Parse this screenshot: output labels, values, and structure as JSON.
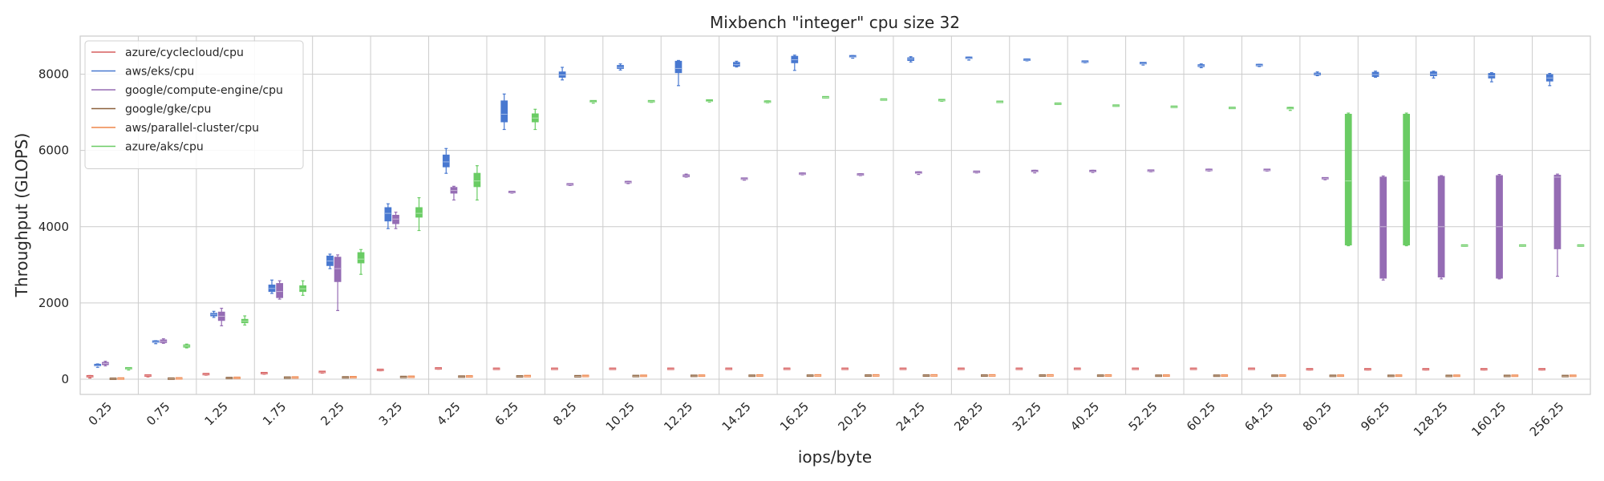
{
  "chart_data": {
    "type": "box",
    "title": "Mixbench \"integer\" cpu size 32",
    "xlabel": "iops/byte",
    "ylabel": "Throughput (GLOPS)",
    "ylim": [
      -400,
      9000
    ],
    "yticks": [
      0,
      2000,
      4000,
      6000,
      8000
    ],
    "grid": true,
    "legend_position": "top-left",
    "categories": [
      "0.25",
      "0.75",
      "1.25",
      "1.75",
      "2.25",
      "3.25",
      "4.25",
      "6.25",
      "8.25",
      "10.25",
      "12.25",
      "14.25",
      "16.25",
      "20.25",
      "24.25",
      "28.25",
      "32.25",
      "40.25",
      "52.25",
      "60.25",
      "64.25",
      "80.25",
      "96.25",
      "128.25",
      "160.25",
      "256.25"
    ],
    "series": [
      {
        "name": "azure/cyclecloud/cpu",
        "color": "#d65f5f",
        "boxes": [
          [
            30,
            55,
            65,
            75,
            95
          ],
          [
            60,
            80,
            90,
            95,
            110
          ],
          [
            105,
            118,
            125,
            132,
            145
          ],
          [
            130,
            142,
            150,
            158,
            170
          ],
          [
            160,
            175,
            182,
            190,
            200
          ],
          [
            220,
            230,
            238,
            243,
            255
          ],
          [
            260,
            270,
            275,
            282,
            292
          ],
          [
            255,
            262,
            268,
            272,
            282
          ],
          [
            255,
            262,
            268,
            272,
            282
          ],
          [
            258,
            263,
            268,
            272,
            280
          ],
          [
            258,
            263,
            268,
            272,
            280
          ],
          [
            258,
            263,
            268,
            272,
            280
          ],
          [
            258,
            263,
            268,
            272,
            280
          ],
          [
            258,
            263,
            268,
            272,
            280
          ],
          [
            258,
            263,
            268,
            272,
            280
          ],
          [
            258,
            263,
            268,
            272,
            280
          ],
          [
            258,
            263,
            268,
            272,
            280
          ],
          [
            258,
            263,
            268,
            272,
            280
          ],
          [
            258,
            263,
            268,
            272,
            280
          ],
          [
            258,
            263,
            268,
            272,
            280
          ],
          [
            258,
            263,
            268,
            272,
            280
          ],
          [
            240,
            250,
            255,
            260,
            268
          ],
          [
            240,
            250,
            255,
            260,
            268
          ],
          [
            240,
            250,
            255,
            260,
            268
          ],
          [
            240,
            250,
            255,
            260,
            268
          ],
          [
            240,
            250,
            255,
            260,
            268
          ]
        ]
      },
      {
        "name": "aws/eks/cpu",
        "color": "#4878d0",
        "boxes": [
          [
            310,
            330,
            350,
            370,
            400
          ],
          [
            930,
            955,
            970,
            985,
            1010
          ],
          [
            1620,
            1660,
            1700,
            1730,
            1780
          ],
          [
            2250,
            2300,
            2380,
            2470,
            2600
          ],
          [
            2900,
            2980,
            3100,
            3230,
            3280
          ],
          [
            3950,
            4150,
            4350,
            4500,
            4600
          ],
          [
            5400,
            5570,
            5700,
            5880,
            6050
          ],
          [
            6550,
            6750,
            6950,
            7300,
            7480
          ],
          [
            7850,
            7920,
            7980,
            8060,
            8180
          ],
          [
            8110,
            8150,
            8180,
            8230,
            8270
          ],
          [
            7700,
            8040,
            8150,
            8340,
            8360
          ],
          [
            8190,
            8210,
            8250,
            8310,
            8340
          ],
          [
            8100,
            8300,
            8380,
            8470,
            8500
          ],
          [
            8420,
            8430,
            8450,
            8470,
            8490
          ],
          [
            8320,
            8360,
            8400,
            8430,
            8460
          ],
          [
            8370,
            8390,
            8410,
            8430,
            8450
          ],
          [
            8350,
            8360,
            8370,
            8380,
            8400
          ],
          [
            8300,
            8310,
            8320,
            8330,
            8340
          ],
          [
            8240,
            8250,
            8270,
            8290,
            8300
          ],
          [
            8170,
            8200,
            8220,
            8250,
            8270
          ],
          [
            8200,
            8210,
            8230,
            8240,
            8260
          ],
          [
            7960,
            7980,
            8000,
            8030,
            8060
          ],
          [
            7920,
            7940,
            7990,
            8050,
            8080
          ],
          [
            7900,
            7960,
            8000,
            8060,
            8080
          ],
          [
            7800,
            7900,
            7960,
            8020,
            8040
          ],
          [
            7700,
            7820,
            7900,
            7990,
            8020
          ]
        ]
      },
      {
        "name": "google/compute-engine/cpu",
        "color": "#956cb4",
        "boxes": [
          [
            350,
            380,
            410,
            440,
            470
          ],
          [
            940,
            960,
            990,
            1030,
            1060
          ],
          [
            1400,
            1540,
            1650,
            1760,
            1860
          ],
          [
            2100,
            2140,
            2300,
            2510,
            2580
          ],
          [
            1800,
            2560,
            2900,
            3200,
            3260
          ],
          [
            3950,
            4080,
            4200,
            4300,
            4380
          ],
          [
            4700,
            4880,
            4950,
            5030,
            5060
          ],
          [
            4880,
            4890,
            4900,
            4910,
            4920
          ],
          [
            5080,
            5090,
            5100,
            5110,
            5120
          ],
          [
            5130,
            5140,
            5160,
            5170,
            5190
          ],
          [
            5300,
            5310,
            5330,
            5360,
            5380
          ],
          [
            5220,
            5230,
            5250,
            5260,
            5270
          ],
          [
            5360,
            5370,
            5380,
            5390,
            5410
          ],
          [
            5340,
            5350,
            5360,
            5370,
            5390
          ],
          [
            5370,
            5380,
            5400,
            5420,
            5440
          ],
          [
            5410,
            5420,
            5430,
            5440,
            5450
          ],
          [
            5410,
            5420,
            5440,
            5460,
            5480
          ],
          [
            5420,
            5430,
            5440,
            5460,
            5480
          ],
          [
            5440,
            5450,
            5460,
            5470,
            5480
          ],
          [
            5460,
            5470,
            5480,
            5490,
            5510
          ],
          [
            5460,
            5470,
            5480,
            5490,
            5500
          ],
          [
            5230,
            5240,
            5260,
            5270,
            5280
          ],
          [
            2600,
            2650,
            4000,
            5300,
            5330
          ],
          [
            2630,
            2680,
            4000,
            5320,
            5340
          ],
          [
            2630,
            2650,
            4000,
            5340,
            5370
          ],
          [
            2700,
            3420,
            5300,
            5350,
            5380
          ]
        ]
      },
      {
        "name": "google/gke/cpu",
        "color": "#8c613c",
        "boxes": [
          [
            0,
            3,
            6,
            10,
            14
          ],
          [
            4,
            7,
            10,
            13,
            17
          ],
          [
            18,
            22,
            26,
            30,
            34
          ],
          [
            28,
            32,
            36,
            40,
            44
          ],
          [
            35,
            39,
            43,
            47,
            51
          ],
          [
            45,
            49,
            53,
            57,
            61
          ],
          [
            55,
            59,
            63,
            67,
            71
          ],
          [
            60,
            64,
            68,
            72,
            76
          ],
          [
            65,
            69,
            73,
            77,
            81
          ],
          [
            70,
            74,
            78,
            82,
            86
          ],
          [
            75,
            79,
            83,
            87,
            91
          ],
          [
            78,
            82,
            86,
            90,
            94
          ],
          [
            80,
            84,
            88,
            92,
            96
          ],
          [
            82,
            86,
            90,
            94,
            98
          ],
          [
            82,
            86,
            90,
            94,
            98
          ],
          [
            82,
            86,
            90,
            94,
            98
          ],
          [
            82,
            86,
            90,
            94,
            98
          ],
          [
            80,
            84,
            88,
            92,
            96
          ],
          [
            78,
            82,
            86,
            90,
            94
          ],
          [
            78,
            82,
            86,
            90,
            94
          ],
          [
            78,
            82,
            86,
            90,
            94
          ],
          [
            75,
            79,
            83,
            87,
            91
          ],
          [
            75,
            79,
            83,
            87,
            91
          ],
          [
            73,
            77,
            81,
            85,
            89
          ],
          [
            73,
            77,
            81,
            85,
            89
          ],
          [
            70,
            74,
            78,
            82,
            86
          ]
        ]
      },
      {
        "name": "aws/parallel-cluster/cpu",
        "color": "#ee854a",
        "boxes": [
          [
            5,
            8,
            12,
            16,
            20
          ],
          [
            8,
            12,
            16,
            20,
            24
          ],
          [
            22,
            26,
            30,
            34,
            38
          ],
          [
            32,
            36,
            40,
            44,
            48
          ],
          [
            40,
            44,
            48,
            52,
            56
          ],
          [
            50,
            54,
            58,
            62,
            66
          ],
          [
            60,
            64,
            68,
            72,
            76
          ],
          [
            68,
            72,
            76,
            80,
            84
          ],
          [
            72,
            76,
            80,
            84,
            88
          ],
          [
            76,
            80,
            84,
            88,
            92
          ],
          [
            80,
            84,
            88,
            92,
            96
          ],
          [
            84,
            88,
            92,
            96,
            100
          ],
          [
            86,
            90,
            94,
            98,
            102
          ],
          [
            86,
            90,
            94,
            98,
            102
          ],
          [
            86,
            90,
            94,
            98,
            102
          ],
          [
            86,
            90,
            94,
            98,
            102
          ],
          [
            86,
            90,
            94,
            98,
            102
          ],
          [
            84,
            88,
            92,
            96,
            100
          ],
          [
            82,
            86,
            90,
            94,
            98
          ],
          [
            82,
            86,
            90,
            94,
            98
          ],
          [
            82,
            86,
            90,
            94,
            98
          ],
          [
            80,
            84,
            88,
            92,
            96
          ],
          [
            80,
            84,
            88,
            92,
            96
          ],
          [
            78,
            82,
            86,
            90,
            94
          ],
          [
            78,
            82,
            86,
            90,
            94
          ],
          [
            76,
            80,
            84,
            88,
            92
          ]
        ]
      },
      {
        "name": "azure/aks/cpu",
        "color": "#6acc64",
        "boxes": [
          [
            240,
            255,
            270,
            285,
            300
          ],
          [
            820,
            840,
            870,
            900,
            920
          ],
          [
            1420,
            1480,
            1520,
            1570,
            1660
          ],
          [
            2200,
            2300,
            2370,
            2450,
            2580
          ],
          [
            2750,
            3050,
            3150,
            3320,
            3400
          ],
          [
            3900,
            4250,
            4350,
            4500,
            4760
          ],
          [
            4700,
            5050,
            5200,
            5400,
            5600
          ],
          [
            6550,
            6750,
            6850,
            6960,
            7080
          ],
          [
            7240,
            7250,
            7270,
            7290,
            7300
          ],
          [
            7260,
            7270,
            7280,
            7290,
            7300
          ],
          [
            7270,
            7280,
            7290,
            7310,
            7320
          ],
          [
            7250,
            7260,
            7270,
            7280,
            7300
          ],
          [
            7380,
            7385,
            7390,
            7395,
            7400
          ],
          [
            7320,
            7325,
            7330,
            7335,
            7340
          ],
          [
            7290,
            7300,
            7310,
            7320,
            7330
          ],
          [
            7260,
            7265,
            7270,
            7275,
            7280
          ],
          [
            7210,
            7215,
            7220,
            7225,
            7230
          ],
          [
            7160,
            7165,
            7170,
            7175,
            7180
          ],
          [
            7130,
            7135,
            7140,
            7145,
            7150
          ],
          [
            7100,
            7105,
            7110,
            7115,
            7120
          ],
          [
            7050,
            7070,
            7090,
            7110,
            7130
          ],
          [
            3500,
            3520,
            5200,
            6950,
            6980
          ],
          [
            3500,
            3520,
            5200,
            6950,
            6980
          ],
          [
            3490,
            3495,
            3500,
            3505,
            3510
          ],
          [
            3490,
            3495,
            3500,
            3505,
            3510
          ],
          [
            3490,
            3495,
            3500,
            3505,
            3510
          ]
        ]
      }
    ]
  }
}
